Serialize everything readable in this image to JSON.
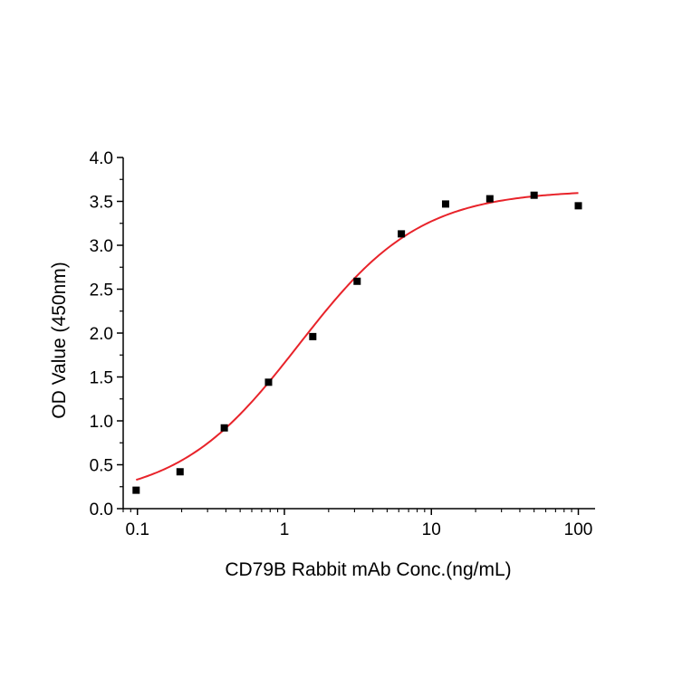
{
  "chart_data": {
    "type": "scatter",
    "title": "",
    "xlabel": "CD79B Rabbit mAb Conc.(ng/mL)",
    "ylabel": "OD Value (450nm)",
    "x_scale": "log",
    "xlim": [
      0.08,
      130
    ],
    "ylim": [
      0,
      4.0
    ],
    "x_ticks": [
      {
        "value": 0.1,
        "label": "0.1"
      },
      {
        "value": 1,
        "label": "1"
      },
      {
        "value": 10,
        "label": "10"
      },
      {
        "value": 100,
        "label": "100"
      }
    ],
    "y_ticks": [
      {
        "value": 0.0,
        "label": "0.0"
      },
      {
        "value": 0.5,
        "label": "0.5"
      },
      {
        "value": 1.0,
        "label": "1.0"
      },
      {
        "value": 1.5,
        "label": "1.5"
      },
      {
        "value": 2.0,
        "label": "2.0"
      },
      {
        "value": 2.5,
        "label": "2.5"
      },
      {
        "value": 3.0,
        "label": "3.0"
      },
      {
        "value": 3.5,
        "label": "3.5"
      },
      {
        "value": 4.0,
        "label": "4.0"
      }
    ],
    "grid": false,
    "legend": "none",
    "series": [
      {
        "kind": "points",
        "marker": "square",
        "color": "#000000",
        "x": [
          0.098,
          0.195,
          0.39,
          0.78,
          1.56,
          3.125,
          6.25,
          12.5,
          25,
          50,
          100
        ],
        "y": [
          0.21,
          0.42,
          0.92,
          1.44,
          1.96,
          2.59,
          3.13,
          3.47,
          3.53,
          3.57,
          3.45
        ]
      },
      {
        "kind": "fit-curve",
        "model": "4PL",
        "color": "#e8232a",
        "bottom": 0.1,
        "top": 3.63,
        "ec50": 1.25,
        "hill": 1.05,
        "x_range": [
          0.098,
          100
        ]
      }
    ]
  }
}
